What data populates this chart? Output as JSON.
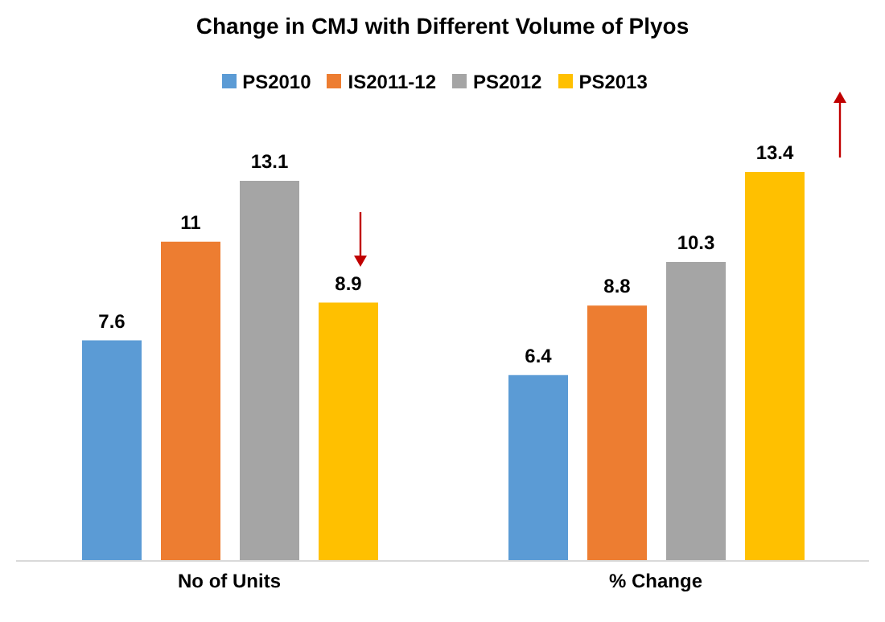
{
  "chart_data": {
    "type": "bar",
    "title": "Change in CMJ with Different Volume of Plyos",
    "categories": [
      "No of Units",
      "% Change"
    ],
    "series": [
      {
        "name": "PS2010",
        "color": "#5b9bd5",
        "values": [
          7.6,
          6.4
        ]
      },
      {
        "name": "IS2011-12",
        "color": "#ed7d31",
        "values": [
          11,
          8.8
        ]
      },
      {
        "name": "PS2012",
        "color": "#a5a5a5",
        "values": [
          13.1,
          10.3
        ]
      },
      {
        "name": "PS2013",
        "color": "#ffc000",
        "values": [
          8.9,
          13.4
        ]
      }
    ],
    "data_labels": true,
    "legend": "top"
  }
}
